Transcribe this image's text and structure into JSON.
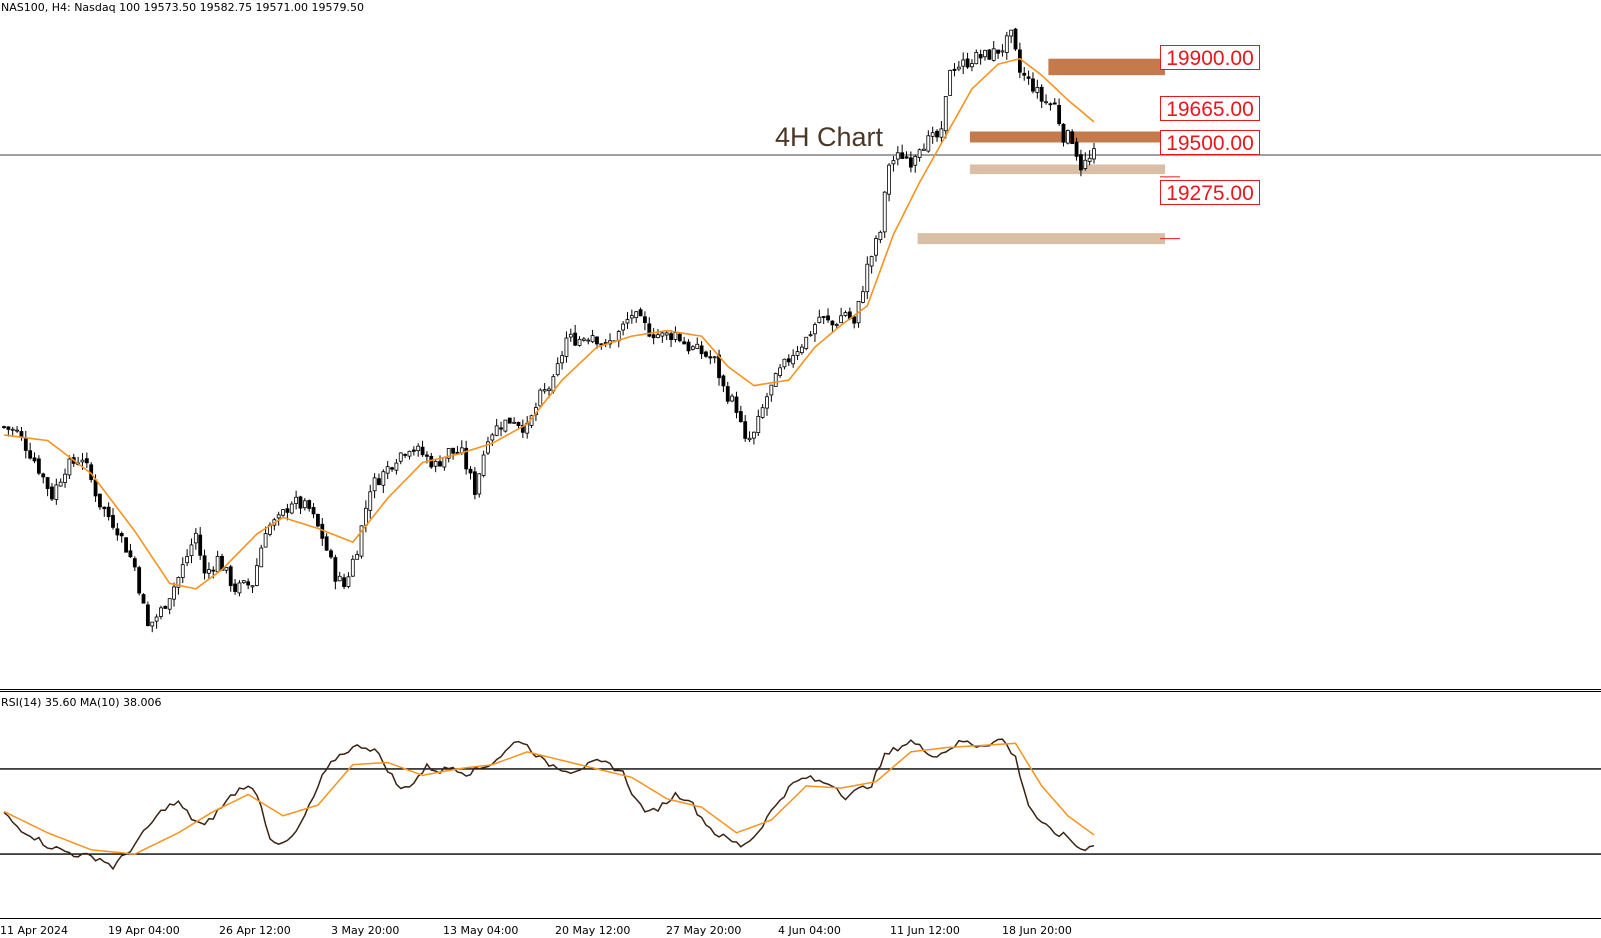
{
  "header": {
    "main": "NAS100, H4:  Nasdaq 100  19573.50 19582.75 19571.00 19579.50",
    "rsi": "RSI(14) 35.60 MA(10) 38.006"
  },
  "annotation": "4H Chart",
  "colors": {
    "candle": "#000000",
    "ma": "#f7931e",
    "rsi": "#3b2314",
    "level_line": "#e8171b",
    "zone_dark": "#c47a4a",
    "zone_light": "#d8bfa6"
  },
  "chart_data": {
    "type": "candlestick",
    "symbol": "NAS100",
    "timeframe": "H4",
    "ylim": [
      17650,
      20100
    ],
    "current_price": 19579.5,
    "x_labels": [
      "11 Apr 2024",
      "19 Apr 04:00",
      "26 Apr 12:00",
      "3 May 20:00",
      "13 May 04:00",
      "20 May 12:00",
      "27 May 20:00",
      "4 Jun 04:00",
      "11 Jun 12:00",
      "18 Jun 20:00"
    ],
    "levels": [
      {
        "label": "19900.00",
        "value": 19900,
        "zone": [
          19870,
          19930
        ],
        "color": "#c47a4a"
      },
      {
        "label": "19665.00",
        "value": 19665,
        "zone": [
          19625,
          19665
        ],
        "color": "#c47a4a"
      },
      {
        "label": "19500.00",
        "value": 19500,
        "zone": [
          19510,
          19545
        ],
        "color": "#d8bfa6"
      },
      {
        "label": "19275.00",
        "value": 19275,
        "zone": [
          19255,
          19295
        ],
        "color": "#d8bfa6"
      }
    ],
    "price_path": [
      [
        0,
        18590
      ],
      [
        3,
        18570
      ],
      [
        7,
        18470
      ],
      [
        11,
        18340
      ],
      [
        14,
        18440
      ],
      [
        18,
        18480
      ],
      [
        22,
        18310
      ],
      [
        26,
        18220
      ],
      [
        30,
        18080
      ],
      [
        33,
        17860
      ],
      [
        36,
        17920
      ],
      [
        40,
        18040
      ],
      [
        44,
        18200
      ],
      [
        46,
        18050
      ],
      [
        49,
        18110
      ],
      [
        53,
        18000
      ],
      [
        57,
        18020
      ],
      [
        60,
        18220
      ],
      [
        63,
        18250
      ],
      [
        66,
        18320
      ],
      [
        70,
        18290
      ],
      [
        73,
        18190
      ],
      [
        76,
        18050
      ],
      [
        78,
        18010
      ],
      [
        81,
        18150
      ],
      [
        84,
        18370
      ],
      [
        87,
        18420
      ],
      [
        90,
        18480
      ],
      [
        93,
        18520
      ],
      [
        96,
        18490
      ],
      [
        99,
        18450
      ],
      [
        102,
        18500
      ],
      [
        105,
        18490
      ],
      [
        108,
        18360
      ],
      [
        111,
        18560
      ],
      [
        114,
        18600
      ],
      [
        117,
        18620
      ],
      [
        120,
        18580
      ],
      [
        123,
        18700
      ],
      [
        126,
        18750
      ],
      [
        129,
        18910
      ],
      [
        132,
        18910
      ],
      [
        135,
        18930
      ],
      [
        138,
        18880
      ],
      [
        141,
        18930
      ],
      [
        144,
        19000
      ],
      [
        148,
        18940
      ],
      [
        151,
        18920
      ],
      [
        154,
        18930
      ],
      [
        157,
        18880
      ],
      [
        160,
        18860
      ],
      [
        163,
        18830
      ],
      [
        165,
        18730
      ],
      [
        168,
        18660
      ],
      [
        170,
        18530
      ],
      [
        172,
        18560
      ],
      [
        175,
        18700
      ],
      [
        178,
        18790
      ],
      [
        181,
        18860
      ],
      [
        184,
        18910
      ],
      [
        187,
        18990
      ],
      [
        190,
        18960
      ],
      [
        193,
        19010
      ],
      [
        195,
        18960
      ],
      [
        198,
        19170
      ],
      [
        201,
        19300
      ],
      [
        203,
        19550
      ],
      [
        206,
        19580
      ],
      [
        208,
        19560
      ],
      [
        210,
        19620
      ],
      [
        212,
        19630
      ],
      [
        215,
        19650
      ],
      [
        217,
        19900
      ],
      [
        220,
        19910
      ],
      [
        222,
        19930
      ],
      [
        225,
        19940
      ],
      [
        227,
        19950
      ],
      [
        229,
        19970
      ],
      [
        231,
        20010
      ],
      [
        233,
        19880
      ],
      [
        236,
        19830
      ],
      [
        238,
        19780
      ],
      [
        241,
        19760
      ],
      [
        243,
        19650
      ],
      [
        245,
        19640
      ],
      [
        247,
        19540
      ],
      [
        249,
        19560
      ],
      [
        250,
        19580
      ]
    ],
    "ma_path": [
      [
        0,
        18560
      ],
      [
        10,
        18540
      ],
      [
        20,
        18420
      ],
      [
        30,
        18210
      ],
      [
        38,
        18020
      ],
      [
        44,
        18000
      ],
      [
        50,
        18070
      ],
      [
        58,
        18200
      ],
      [
        64,
        18260
      ],
      [
        72,
        18220
      ],
      [
        80,
        18170
      ],
      [
        88,
        18330
      ],
      [
        96,
        18460
      ],
      [
        104,
        18490
      ],
      [
        112,
        18530
      ],
      [
        120,
        18600
      ],
      [
        128,
        18760
      ],
      [
        136,
        18880
      ],
      [
        144,
        18920
      ],
      [
        152,
        18940
      ],
      [
        160,
        18920
      ],
      [
        166,
        18810
      ],
      [
        172,
        18740
      ],
      [
        180,
        18760
      ],
      [
        186,
        18880
      ],
      [
        192,
        18960
      ],
      [
        198,
        19030
      ],
      [
        204,
        19290
      ],
      [
        210,
        19480
      ],
      [
        216,
        19650
      ],
      [
        222,
        19820
      ],
      [
        228,
        19910
      ],
      [
        233,
        19930
      ],
      [
        238,
        19870
      ],
      [
        244,
        19780
      ],
      [
        250,
        19700
      ]
    ],
    "rsi": {
      "levels": [
        70,
        30
      ],
      "ylim": [
        0,
        100
      ],
      "path": [
        [
          0,
          49
        ],
        [
          3,
          43
        ],
        [
          7,
          38
        ],
        [
          10,
          34
        ],
        [
          13,
          32
        ],
        [
          16,
          30
        ],
        [
          19,
          29
        ],
        [
          22,
          28
        ],
        [
          25,
          24
        ],
        [
          28,
          30
        ],
        [
          31,
          37
        ],
        [
          34,
          45
        ],
        [
          37,
          52
        ],
        [
          40,
          54
        ],
        [
          43,
          47
        ],
        [
          46,
          43
        ],
        [
          49,
          50
        ],
        [
          52,
          57
        ],
        [
          55,
          62
        ],
        [
          58,
          59
        ],
        [
          61,
          38
        ],
        [
          64,
          34
        ],
        [
          67,
          40
        ],
        [
          70,
          52
        ],
        [
          73,
          66
        ],
        [
          76,
          75
        ],
        [
          79,
          79
        ],
        [
          82,
          81
        ],
        [
          85,
          79
        ],
        [
          88,
          70
        ],
        [
          91,
          60
        ],
        [
          94,
          64
        ],
        [
          97,
          71
        ],
        [
          100,
          69
        ],
        [
          103,
          71
        ],
        [
          106,
          68
        ],
        [
          109,
          70
        ],
        [
          112,
          73
        ],
        [
          115,
          78
        ],
        [
          118,
          84
        ],
        [
          121,
          79
        ],
        [
          124,
          73
        ],
        [
          127,
          71
        ],
        [
          130,
          69
        ],
        [
          133,
          71
        ],
        [
          136,
          73
        ],
        [
          139,
          72
        ],
        [
          142,
          68
        ],
        [
          145,
          55
        ],
        [
          148,
          49
        ],
        [
          151,
          53
        ],
        [
          154,
          58
        ],
        [
          157,
          56
        ],
        [
          160,
          47
        ],
        [
          163,
          40
        ],
        [
          166,
          37
        ],
        [
          169,
          34
        ],
        [
          172,
          38
        ],
        [
          175,
          47
        ],
        [
          178,
          56
        ],
        [
          181,
          63
        ],
        [
          184,
          66
        ],
        [
          187,
          64
        ],
        [
          190,
          63
        ],
        [
          193,
          57
        ],
        [
          196,
          60
        ],
        [
          199,
          63
        ],
        [
          202,
          76
        ],
        [
          205,
          80
        ],
        [
          208,
          83
        ],
        [
          211,
          79
        ],
        [
          214,
          76
        ],
        [
          217,
          80
        ],
        [
          220,
          83
        ],
        [
          223,
          81
        ],
        [
          226,
          82
        ],
        [
          229,
          84
        ],
        [
          232,
          75
        ],
        [
          235,
          53
        ],
        [
          238,
          44
        ],
        [
          241,
          40
        ],
        [
          244,
          38
        ],
        [
          247,
          32
        ],
        [
          250,
          35
        ]
      ],
      "ma_path": [
        [
          0,
          50
        ],
        [
          10,
          40
        ],
        [
          20,
          32
        ],
        [
          30,
          30
        ],
        [
          40,
          40
        ],
        [
          48,
          50
        ],
        [
          56,
          58
        ],
        [
          64,
          48
        ],
        [
          72,
          53
        ],
        [
          80,
          72
        ],
        [
          88,
          73
        ],
        [
          96,
          67
        ],
        [
          104,
          70
        ],
        [
          112,
          72
        ],
        [
          120,
          78
        ],
        [
          128,
          74
        ],
        [
          136,
          70
        ],
        [
          144,
          66
        ],
        [
          152,
          56
        ],
        [
          160,
          52
        ],
        [
          168,
          40
        ],
        [
          176,
          46
        ],
        [
          184,
          62
        ],
        [
          192,
          61
        ],
        [
          200,
          64
        ],
        [
          208,
          78
        ],
        [
          216,
          80
        ],
        [
          224,
          81
        ],
        [
          232,
          82
        ],
        [
          238,
          62
        ],
        [
          244,
          48
        ],
        [
          250,
          39
        ]
      ]
    }
  }
}
